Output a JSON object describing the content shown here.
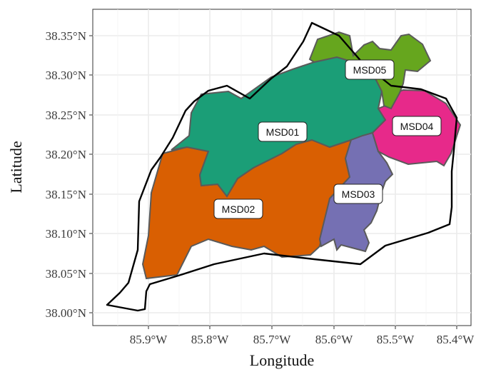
{
  "axes": {
    "xlabel": "Longitude",
    "ylabel": "Latitude",
    "x_ticks": [
      "85.9°W",
      "85.8°W",
      "85.7°W",
      "85.6°W",
      "85.5°W",
      "85.4°W"
    ],
    "y_ticks": [
      "38.00°N",
      "38.05°N",
      "38.10°N",
      "38.15°N",
      "38.20°N",
      "38.25°N",
      "38.30°N",
      "38.35°N"
    ],
    "x_range": [
      -85.985,
      -85.385
    ],
    "y_range": [
      37.985,
      38.375
    ],
    "grid": true
  },
  "regions": [
    {
      "label": "MSD01",
      "color": "#1b9e77"
    },
    {
      "label": "MSD02",
      "color": "#d95f02"
    },
    {
      "label": "MSD03",
      "color": "#7570b3"
    },
    {
      "label": "MSD04",
      "color": "#e7298a"
    },
    {
      "label": "MSD05",
      "color": "#66a61e"
    }
  ],
  "colors": {
    "boundary": "#000000",
    "region_border": "#5a5a5a",
    "panel_background": "#ffffff",
    "grid": "#ebebeb"
  }
}
